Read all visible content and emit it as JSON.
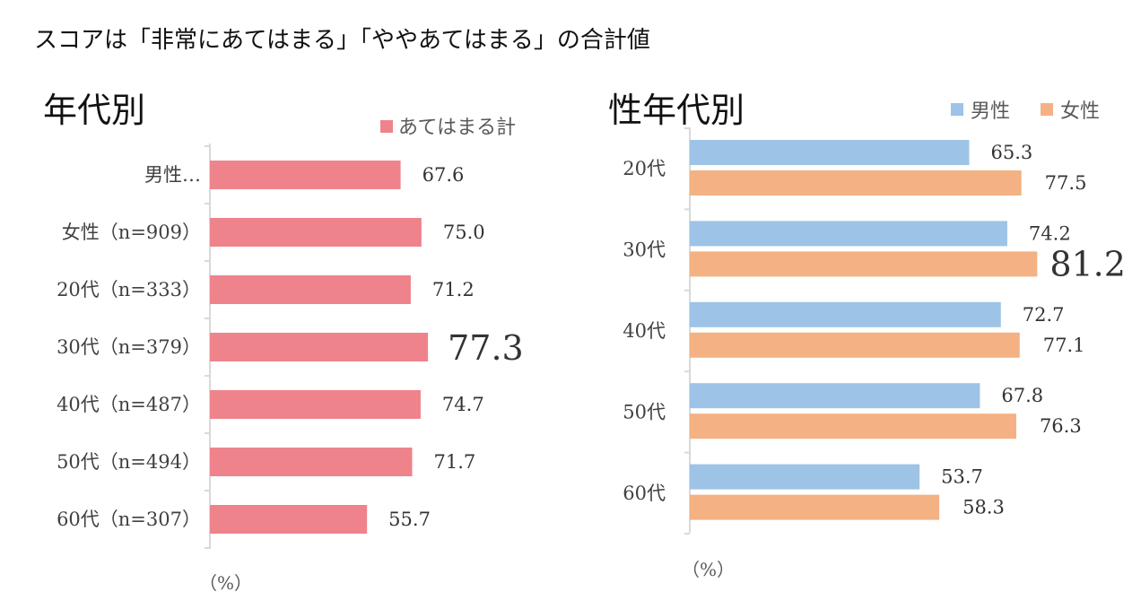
{
  "page_title": "スコアは「非常にあてはまる」「ややあてはまる」の合計値",
  "colors": {
    "overall": "#ee838c",
    "male": "#9dc3e6",
    "female": "#f4b183",
    "axis": "#d9d9d9"
  },
  "chart_data": [
    {
      "type": "bar",
      "orientation": "horizontal",
      "title": "年代別",
      "categories": [
        "男性…",
        "女性（n=909）",
        "20代（n=333）",
        "30代（n=379）",
        "40代（n=487）",
        "50代（n=494）",
        "60代（n=307）"
      ],
      "series": [
        {
          "name": "あてはまる計",
          "values": [
            67.6,
            75.0,
            71.2,
            77.3,
            74.7,
            71.7,
            55.7
          ]
        }
      ],
      "value_labels": [
        "67.6",
        "75.0",
        "71.2",
        "77.3",
        "74.7",
        "71.7",
        "55.7"
      ],
      "highlighted_category": "30代（n=379）",
      "unit_label": "（%）",
      "legend": "top-right",
      "xlim": [
        0,
        100
      ],
      "grid": false
    },
    {
      "type": "bar",
      "orientation": "horizontal",
      "title": "性年代別",
      "categories": [
        "20代",
        "30代",
        "40代",
        "50代",
        "60代"
      ],
      "series": [
        {
          "name": "男性",
          "values": [
            65.3,
            74.2,
            72.7,
            67.8,
            53.7
          ],
          "labels": [
            "65.3",
            "74.2",
            "72.7",
            "67.8",
            "53.7"
          ]
        },
        {
          "name": "女性",
          "values": [
            77.5,
            81.2,
            77.1,
            76.3,
            58.3
          ],
          "labels": [
            "77.5",
            "81.2",
            "77.1",
            "76.3",
            "58.3"
          ]
        }
      ],
      "highlighted_value": "81.2",
      "unit_label": "（%）",
      "legend": "top-right",
      "xlim": [
        0,
        100
      ],
      "grid": false
    }
  ]
}
